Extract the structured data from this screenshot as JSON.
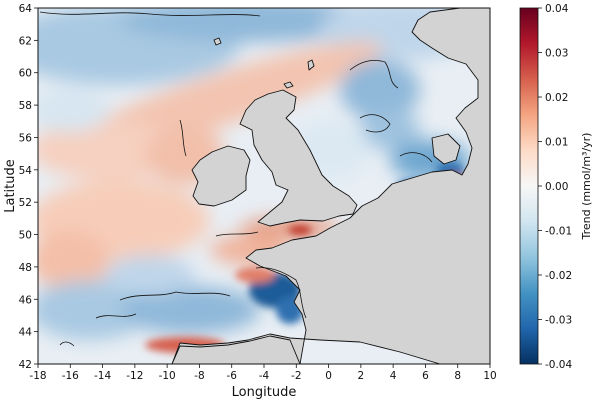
{
  "map": {
    "xlabel": "Longitude",
    "ylabel": "Latitude",
    "x_range": [
      -18,
      10
    ],
    "y_range": [
      42,
      64
    ],
    "x_ticks": [
      "-18",
      "-16",
      "-14",
      "-12",
      "-10",
      "-8",
      "-6",
      "-4",
      "-2",
      "0",
      "2",
      "4",
      "6",
      "8",
      "10"
    ],
    "y_ticks": [
      "42",
      "44",
      "46",
      "48",
      "50",
      "52",
      "54",
      "56",
      "58",
      "60",
      "62",
      "64"
    ],
    "land_color": "#d3d3d3",
    "coast_color": "#111111"
  },
  "colorbar": {
    "title": "Trend (mmol/m³/yr)",
    "ticks": [
      "0.04",
      "0.03",
      "0.02",
      "0.01",
      "0.00",
      "-0.01",
      "-0.02",
      "-0.03",
      "-0.04"
    ],
    "min": -0.04,
    "max": 0.04,
    "colormap_stops": [
      "#67001f",
      "#b2182b",
      "#d6604d",
      "#f4a582",
      "#fddbc7",
      "#f7f7f7",
      "#d1e5f0",
      "#92c5de",
      "#4393c3",
      "#2166ac",
      "#053061"
    ]
  }
}
